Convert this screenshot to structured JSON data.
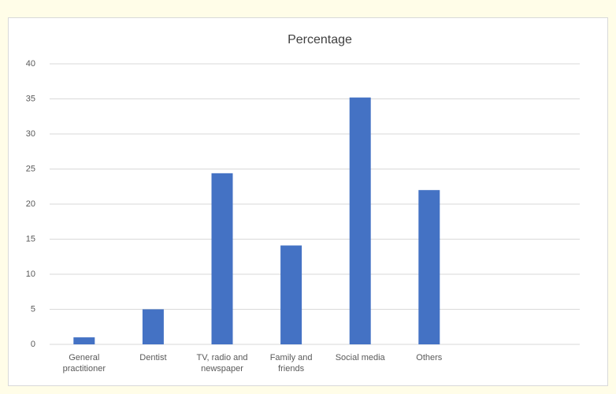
{
  "chart_data": {
    "type": "bar",
    "title": "Percentage",
    "categories": [
      "General practitioner",
      "Dentist",
      "TV, radio and newspaper",
      "Family and friends",
      "Social media",
      "Others"
    ],
    "values": [
      1,
      5,
      24.4,
      14.1,
      35.2,
      22
    ],
    "color": "#4472c4",
    "ylim": [
      0,
      40
    ],
    "yticks": [
      0,
      5,
      10,
      15,
      20,
      25,
      30,
      35,
      40
    ],
    "grid": true
  }
}
